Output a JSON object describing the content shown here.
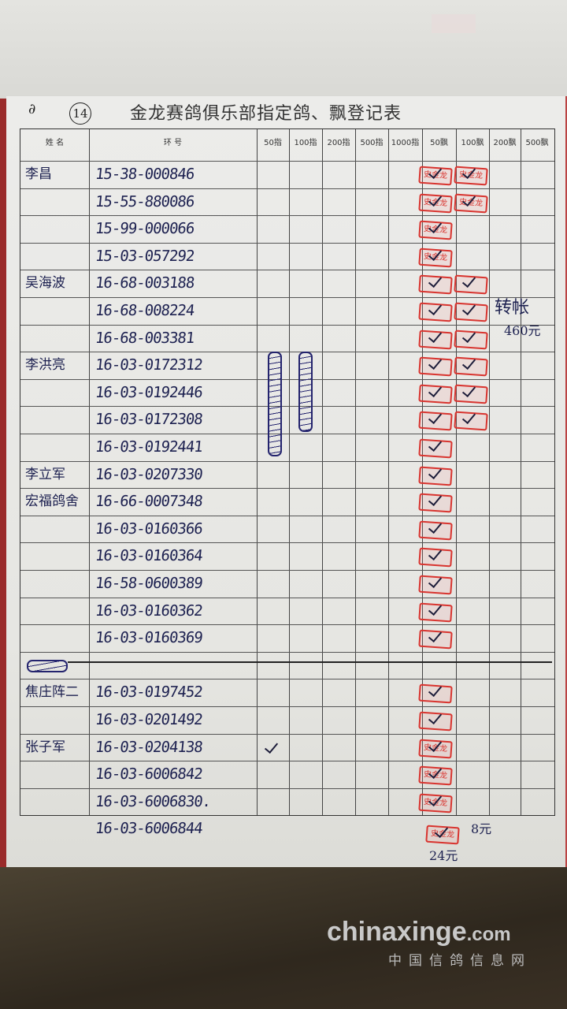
{
  "document": {
    "page_number": "14",
    "title": "金龙赛鸽俱乐部指定鸽、飘登记表",
    "columns": [
      "姓 名",
      "环 号",
      "50指",
      "100指",
      "200指",
      "500指",
      "1000指",
      "50飘",
      "100飘",
      "200飘",
      "500飘"
    ],
    "stamp_colors": {
      "red": "#d8342f"
    },
    "stamps": {
      "a": "史金龙",
      "b": ""
    },
    "rows": [
      {
        "name": "李昌",
        "ring": "15-38-000846",
        "piao50": "a",
        "piao100": "a"
      },
      {
        "name": "",
        "ring": "15-55-880086",
        "piao50": "a",
        "piao100": "a"
      },
      {
        "name": "",
        "ring": "15-99-000066",
        "piao50": "a"
      },
      {
        "name": "",
        "ring": "15-03-057292",
        "piao50": "a"
      },
      {
        "name": "吴海波",
        "ring": "16-68-003188",
        "piao50": "b",
        "piao100": "b"
      },
      {
        "name": "",
        "ring": "16-68-008224",
        "piao50": "b",
        "piao100": "b"
      },
      {
        "name": "",
        "ring": "16-68-003381",
        "piao50": "b",
        "piao100": "b"
      },
      {
        "name": "李洪亮",
        "ring": "16-03-0172312",
        "piao50": "b",
        "piao100": "b",
        "zhi50": true,
        "zhi100": true
      },
      {
        "name": "",
        "ring": "16-03-0192446",
        "piao50": "b",
        "piao100": "b",
        "zhi50": true,
        "zhi100": true
      },
      {
        "name": "",
        "ring": "16-03-0172308",
        "piao50": "b",
        "piao100": "b",
        "zhi50": true,
        "zhi100": true
      },
      {
        "name": "",
        "ring": "16-03-0192441",
        "piao50": "b",
        "zhi50": true
      },
      {
        "name": "李立军",
        "ring": "16-03-0207330",
        "piao50": "b"
      },
      {
        "name": "宏福鸽舍",
        "ring": "16-66-0007348",
        "piao50": "b"
      },
      {
        "name": "",
        "ring": "16-03-0160366",
        "piao50": "b"
      },
      {
        "name": "",
        "ring": "16-03-0160364",
        "piao50": "b"
      },
      {
        "name": "",
        "ring": "16-58-0600389",
        "piao50": "b"
      },
      {
        "name": "",
        "ring": "16-03-0160362",
        "piao50": "b"
      },
      {
        "name": "",
        "ring": "16-03-0160369",
        "piao50": "b"
      },
      {
        "name": "",
        "ring": "",
        "crossed": true
      },
      {
        "name": "焦庄阵二",
        "ring": "16-03-0197452",
        "piao50": "b"
      },
      {
        "name": "",
        "ring": "16-03-0201492",
        "piao50": "b"
      },
      {
        "name": "张子军",
        "ring": "16-03-0204138",
        "piao50": "a",
        "tick50": true
      },
      {
        "name": "",
        "ring": "16-03-6006842",
        "piao50": "a"
      },
      {
        "name": "",
        "ring": "16-03-6006830.",
        "piao50": "a"
      }
    ],
    "extra_row": {
      "ring": "16-03-6006844",
      "piao50": "a"
    },
    "notes": {
      "transfer": "转帐",
      "amount": "460元",
      "fee1": "8元",
      "fee2": "24元"
    }
  },
  "watermark": {
    "site": "chinaxinge",
    "tld": ".com",
    "subtitle": "中国信鸽信息网"
  }
}
